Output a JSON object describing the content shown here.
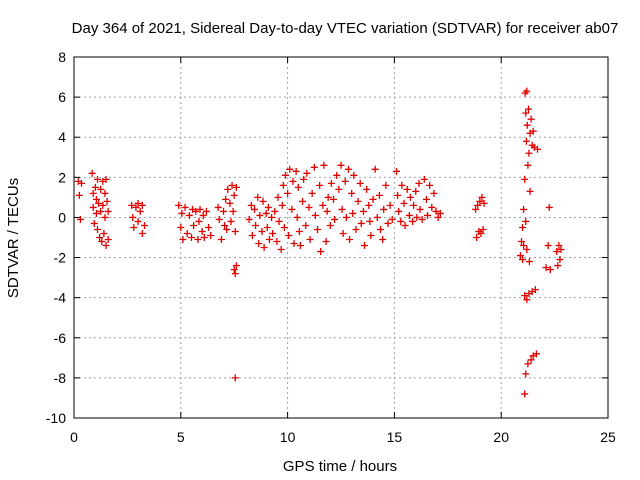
{
  "chart_data": {
    "type": "scatter",
    "title": "Day 364 of 2021, Sidereal Day-to-day VTEC variation (SDTVAR) for receiver ab07",
    "xlabel": "GPS time / hours",
    "ylabel": "SDTVAR / TECUs",
    "xlim": [
      0,
      25
    ],
    "ylim": [
      -10,
      8
    ],
    "xticks": [
      "0",
      "5",
      "10",
      "15",
      "20",
      "25"
    ],
    "yticks": [
      "8",
      "6",
      "4",
      "2",
      "0",
      "-2",
      "-4",
      "-6",
      "-8",
      "-10"
    ],
    "grid": true,
    "marker": "+",
    "color": "#e00000",
    "series": [
      {
        "name": "SDTVAR",
        "points": [
          [
            0.2,
            1.8
          ],
          [
            0.25,
            1.1
          ],
          [
            0.3,
            -0.1
          ],
          [
            0.35,
            1.7
          ],
          [
            0.85,
            2.2
          ],
          [
            0.9,
            1.2
          ],
          [
            0.9,
            0.5
          ],
          [
            0.95,
            -0.3
          ],
          [
            1.0,
            1.5
          ],
          [
            1.05,
            0.9
          ],
          [
            1.05,
            0.2
          ],
          [
            1.1,
            -0.6
          ],
          [
            1.1,
            1.9
          ],
          [
            1.15,
            0.7
          ],
          [
            1.2,
            -1.0
          ],
          [
            1.25,
            1.4
          ],
          [
            1.25,
            0.3
          ],
          [
            1.3,
            -1.2
          ],
          [
            1.35,
            1.8
          ],
          [
            1.35,
            0.6
          ],
          [
            1.4,
            -0.8
          ],
          [
            1.45,
            1.2
          ],
          [
            1.45,
            0.0
          ],
          [
            1.5,
            -1.4
          ],
          [
            1.5,
            1.9
          ],
          [
            1.55,
            0.8
          ],
          [
            1.6,
            -1.1
          ],
          [
            1.6,
            0.3
          ],
          [
            2.7,
            0.6
          ],
          [
            2.75,
            0.0
          ],
          [
            2.8,
            -0.5
          ],
          [
            2.9,
            0.5
          ],
          [
            3.0,
            0.7
          ],
          [
            3.0,
            -0.2
          ],
          [
            3.1,
            0.3
          ],
          [
            3.2,
            -0.8
          ],
          [
            3.2,
            0.6
          ],
          [
            3.3,
            -0.4
          ],
          [
            4.9,
            0.6
          ],
          [
            5.0,
            -0.5
          ],
          [
            5.05,
            0.2
          ],
          [
            5.1,
            -1.1
          ],
          [
            5.2,
            0.5
          ],
          [
            5.3,
            -0.8
          ],
          [
            5.4,
            0.1
          ],
          [
            5.5,
            -1.0
          ],
          [
            5.55,
            0.4
          ],
          [
            5.6,
            -0.4
          ],
          [
            5.7,
            0.3
          ],
          [
            5.8,
            -1.1
          ],
          [
            5.85,
            -0.2
          ],
          [
            5.9,
            0.4
          ],
          [
            6.0,
            -0.7
          ],
          [
            6.05,
            0.1
          ],
          [
            6.1,
            -1.0
          ],
          [
            6.2,
            0.3
          ],
          [
            6.3,
            -0.5
          ],
          [
            6.4,
            -0.9
          ],
          [
            6.75,
            0.5
          ],
          [
            6.8,
            -0.1
          ],
          [
            6.9,
            -1.1
          ],
          [
            7.0,
            0.3
          ],
          [
            7.05,
            -0.4
          ],
          [
            7.1,
            0.9
          ],
          [
            7.15,
            -0.6
          ],
          [
            7.2,
            1.4
          ],
          [
            7.3,
            0.7
          ],
          [
            7.35,
            -0.2
          ],
          [
            7.4,
            1.6
          ],
          [
            7.45,
            0.3
          ],
          [
            7.5,
            1.1
          ],
          [
            7.55,
            -0.7
          ],
          [
            7.6,
            1.5
          ],
          [
            7.5,
            -2.6
          ],
          [
            7.55,
            -2.8
          ],
          [
            7.6,
            -2.4
          ],
          [
            7.55,
            -8.0
          ],
          [
            8.2,
            -0.1
          ],
          [
            8.3,
            0.6
          ],
          [
            8.35,
            -0.9
          ],
          [
            8.45,
            0.4
          ],
          [
            8.5,
            -0.4
          ],
          [
            8.6,
            1.0
          ],
          [
            8.65,
            -1.3
          ],
          [
            8.7,
            0.1
          ],
          [
            8.8,
            -0.7
          ],
          [
            8.85,
            0.8
          ],
          [
            8.9,
            -1.5
          ],
          [
            9.0,
            0.2
          ],
          [
            9.05,
            -0.5
          ],
          [
            9.1,
            0.5
          ],
          [
            9.15,
            -1.1
          ],
          [
            9.25,
            0.0
          ],
          [
            9.3,
            -0.8
          ],
          [
            9.4,
            0.3
          ],
          [
            9.5,
            -1.2
          ],
          [
            9.55,
            1.0
          ],
          [
            9.6,
            -0.2
          ],
          [
            9.7,
            -1.6
          ],
          [
            9.75,
            0.6
          ],
          [
            9.8,
            1.6
          ],
          [
            9.85,
            -0.5
          ],
          [
            9.9,
            2.1
          ],
          [
            10.0,
            1.2
          ],
          [
            10.05,
            -0.9
          ],
          [
            10.1,
            2.4
          ],
          [
            10.2,
            0.4
          ],
          [
            10.25,
            1.8
          ],
          [
            10.3,
            -1.3
          ],
          [
            10.4,
            2.3
          ],
          [
            10.45,
            0.0
          ],
          [
            10.5,
            1.5
          ],
          [
            10.55,
            -0.7
          ],
          [
            10.6,
            -1.4
          ],
          [
            10.7,
            0.8
          ],
          [
            10.75,
            1.9
          ],
          [
            10.85,
            -0.4
          ],
          [
            10.9,
            2.2
          ],
          [
            11.0,
            0.5
          ],
          [
            11.05,
            -1.1
          ],
          [
            11.15,
            1.2
          ],
          [
            11.25,
            2.5
          ],
          [
            11.3,
            0.1
          ],
          [
            11.4,
            -0.6
          ],
          [
            11.5,
            1.6
          ],
          [
            11.55,
            -1.7
          ],
          [
            11.65,
            0.6
          ],
          [
            11.7,
            2.6
          ],
          [
            11.8,
            -1.2
          ],
          [
            11.85,
            0.3
          ],
          [
            11.9,
            1.0
          ],
          [
            12.0,
            -0.4
          ],
          [
            12.05,
            1.7
          ],
          [
            12.15,
            0.9
          ],
          [
            12.2,
            -0.1
          ],
          [
            12.3,
            2.1
          ],
          [
            12.4,
            1.4
          ],
          [
            12.5,
            2.6
          ],
          [
            12.55,
            0.4
          ],
          [
            12.6,
            -0.8
          ],
          [
            12.7,
            1.8
          ],
          [
            12.75,
            0.0
          ],
          [
            12.85,
            2.4
          ],
          [
            12.9,
            -1.1
          ],
          [
            13.0,
            1.2
          ],
          [
            13.05,
            0.2
          ],
          [
            13.1,
            2.1
          ],
          [
            13.2,
            -0.6
          ],
          [
            13.3,
            0.8
          ],
          [
            13.4,
            1.7
          ],
          [
            13.45,
            -0.3
          ],
          [
            13.55,
            0.3
          ],
          [
            13.6,
            -1.4
          ],
          [
            13.7,
            1.4
          ],
          [
            13.8,
            0.6
          ],
          [
            13.85,
            -0.2
          ],
          [
            13.9,
            -0.9
          ],
          [
            14.0,
            0.9
          ],
          [
            14.1,
            2.4
          ],
          [
            14.2,
            0.0
          ],
          [
            14.3,
            1.1
          ],
          [
            14.35,
            -0.6
          ],
          [
            14.45,
            -1.1
          ],
          [
            14.5,
            0.4
          ],
          [
            14.6,
            1.6
          ],
          [
            14.7,
            -0.3
          ],
          [
            14.8,
            0.6
          ],
          [
            14.9,
            -0.1
          ],
          [
            15.1,
            2.3
          ],
          [
            15.15,
            1.1
          ],
          [
            15.2,
            0.3
          ],
          [
            15.3,
            -0.2
          ],
          [
            15.35,
            1.6
          ],
          [
            15.45,
            0.7
          ],
          [
            15.5,
            -0.4
          ],
          [
            15.6,
            1.4
          ],
          [
            15.7,
            0.1
          ],
          [
            15.75,
            1.0
          ],
          [
            15.85,
            -0.2
          ],
          [
            15.9,
            0.6
          ],
          [
            16.0,
            1.3
          ],
          [
            16.05,
            0.0
          ],
          [
            16.15,
            1.7
          ],
          [
            16.2,
            0.4
          ],
          [
            16.3,
            -0.1
          ],
          [
            16.4,
            1.9
          ],
          [
            16.5,
            0.9
          ],
          [
            16.55,
            0.1
          ],
          [
            16.65,
            1.6
          ],
          [
            16.75,
            0.5
          ],
          [
            16.85,
            1.2
          ],
          [
            16.95,
            0.3
          ],
          [
            17.05,
            0.0
          ],
          [
            17.15,
            0.2
          ],
          [
            18.8,
            0.4
          ],
          [
            18.85,
            -1.0
          ],
          [
            18.9,
            0.6
          ],
          [
            18.95,
            -0.7
          ],
          [
            19.0,
            0.8
          ],
          [
            19.05,
            -0.8
          ],
          [
            19.1,
            1.0
          ],
          [
            19.15,
            -0.6
          ],
          [
            19.2,
            0.7
          ],
          [
            20.9,
            -1.9
          ],
          [
            20.95,
            -1.2
          ],
          [
            21.0,
            -2.1
          ],
          [
            21.0,
            -0.5
          ],
          [
            21.05,
            -1.4
          ],
          [
            21.05,
            0.4
          ],
          [
            21.1,
            1.9
          ],
          [
            21.1,
            -3.9
          ],
          [
            21.1,
            -8.8
          ],
          [
            21.12,
            6.2
          ],
          [
            21.15,
            5.2
          ],
          [
            21.15,
            -0.2
          ],
          [
            21.15,
            -7.8
          ],
          [
            21.18,
            3.8
          ],
          [
            21.2,
            6.3
          ],
          [
            21.2,
            -1.6
          ],
          [
            21.2,
            -4.1
          ],
          [
            21.22,
            4.6
          ],
          [
            21.25,
            2.6
          ],
          [
            21.25,
            -7.3
          ],
          [
            21.28,
            5.4
          ],
          [
            21.3,
            3.2
          ],
          [
            21.3,
            -3.8
          ],
          [
            21.32,
            -2.2
          ],
          [
            21.35,
            4.2
          ],
          [
            21.35,
            1.3
          ],
          [
            21.4,
            -7.1
          ],
          [
            21.4,
            4.9
          ],
          [
            21.45,
            3.6
          ],
          [
            21.45,
            -3.7
          ],
          [
            21.5,
            4.3
          ],
          [
            21.5,
            -6.9
          ],
          [
            21.55,
            3.5
          ],
          [
            21.6,
            -3.6
          ],
          [
            21.65,
            -6.8
          ],
          [
            21.7,
            3.4
          ],
          [
            22.1,
            -2.5
          ],
          [
            22.2,
            -1.4
          ],
          [
            22.25,
            0.5
          ],
          [
            22.3,
            -2.6
          ],
          [
            22.6,
            -1.7
          ],
          [
            22.65,
            -2.4
          ],
          [
            22.7,
            -1.4
          ],
          [
            22.75,
            -2.1
          ],
          [
            22.8,
            -1.6
          ]
        ]
      }
    ]
  }
}
